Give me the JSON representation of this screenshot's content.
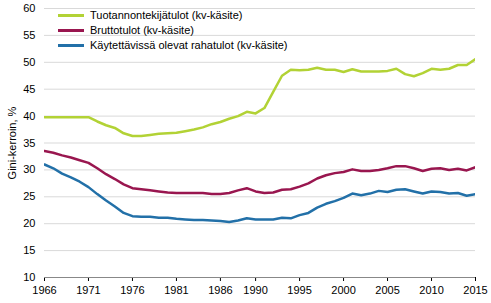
{
  "chart_data": {
    "type": "line",
    "y_label": "Gini-kerroin, %",
    "x": [
      1966,
      1967,
      1968,
      1969,
      1970,
      1971,
      1972,
      1973,
      1974,
      1975,
      1976,
      1977,
      1978,
      1979,
      1980,
      1981,
      1982,
      1983,
      1984,
      1985,
      1986,
      1987,
      1988,
      1989,
      1990,
      1991,
      1992,
      1993,
      1994,
      1995,
      1996,
      1997,
      1998,
      1999,
      2000,
      2001,
      2002,
      2003,
      2004,
      2005,
      2006,
      2007,
      2008,
      2009,
      2010,
      2011,
      2012,
      2013,
      2014,
      2015
    ],
    "series": [
      {
        "name": "Tuotannontekijätulot (kv-käsite)",
        "color": "#b2d235",
        "values": [
          39.8,
          39.8,
          39.8,
          39.8,
          39.8,
          39.8,
          39.0,
          38.3,
          37.8,
          36.8,
          36.3,
          36.3,
          36.5,
          36.7,
          36.8,
          36.9,
          37.2,
          37.5,
          37.9,
          38.5,
          38.9,
          39.5,
          40.0,
          40.8,
          40.5,
          41.5,
          44.5,
          47.5,
          48.6,
          48.5,
          48.6,
          49.0,
          48.6,
          48.6,
          48.2,
          48.7,
          48.3,
          48.3,
          48.3,
          48.4,
          48.8,
          47.8,
          47.4,
          48.0,
          48.8,
          48.6,
          48.8,
          49.5,
          49.5,
          50.6
        ]
      },
      {
        "name": "Bruttotulot (kv-käsite)",
        "color": "#99164f",
        "values": [
          33.5,
          33.2,
          32.7,
          32.3,
          31.8,
          31.3,
          30.3,
          29.2,
          28.3,
          27.3,
          26.6,
          26.4,
          26.2,
          26.0,
          25.8,
          25.7,
          25.7,
          25.7,
          25.7,
          25.5,
          25.5,
          25.7,
          26.2,
          26.6,
          26.0,
          25.7,
          25.8,
          26.3,
          26.4,
          26.9,
          27.5,
          28.4,
          29.0,
          29.4,
          29.6,
          30.1,
          29.8,
          29.8,
          30.0,
          30.3,
          30.7,
          30.7,
          30.3,
          29.8,
          30.2,
          30.3,
          30.0,
          30.2,
          29.9,
          30.5
        ]
      },
      {
        "name": "Käytettävissä olevat rahatulot (kv-käsite)",
        "color": "#2270a8",
        "values": [
          31.0,
          30.3,
          29.3,
          28.6,
          27.8,
          26.8,
          25.5,
          24.3,
          23.2,
          22.0,
          21.4,
          21.3,
          21.3,
          21.1,
          21.1,
          20.9,
          20.8,
          20.7,
          20.7,
          20.6,
          20.5,
          20.3,
          20.6,
          21.0,
          20.8,
          20.8,
          20.8,
          21.1,
          21.0,
          21.6,
          22.0,
          23.0,
          23.7,
          24.2,
          24.8,
          25.6,
          25.3,
          25.6,
          26.1,
          25.9,
          26.3,
          26.4,
          26.0,
          25.6,
          26.0,
          25.9,
          25.6,
          25.7,
          25.2,
          25.5
        ]
      }
    ],
    "xlim": [
      1966,
      2015
    ],
    "xticks": [
      1966,
      1971,
      1976,
      1981,
      1986,
      1990,
      1995,
      2000,
      2005,
      2010,
      2015
    ],
    "ylim": [
      10,
      60
    ],
    "yticks": [
      10,
      15,
      20,
      25,
      30,
      35,
      40,
      45,
      50,
      55,
      60
    ],
    "grid": true,
    "legend": "top-left"
  }
}
